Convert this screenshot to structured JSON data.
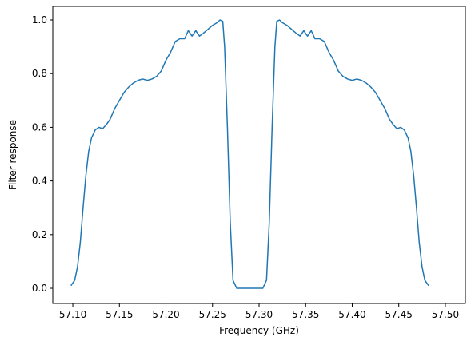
{
  "chart_data": {
    "type": "line",
    "xlabel": "Frequency (GHz)",
    "ylabel": "Filter response",
    "xlim": [
      57.0785,
      57.5215
    ],
    "ylim": [
      -0.0565,
      1.0506
    ],
    "xticks": [
      {
        "value": 57.1,
        "label": "57.10"
      },
      {
        "value": 57.15,
        "label": "57.15"
      },
      {
        "value": 57.2,
        "label": "57.20"
      },
      {
        "value": 57.25,
        "label": "57.25"
      },
      {
        "value": 57.3,
        "label": "57.30"
      },
      {
        "value": 57.35,
        "label": "57.35"
      },
      {
        "value": 57.4,
        "label": "57.40"
      },
      {
        "value": 57.45,
        "label": "57.45"
      },
      {
        "value": 57.5,
        "label": "57.50"
      }
    ],
    "yticks": [
      {
        "value": 0,
        "label": "0.0"
      },
      {
        "value": 0.2,
        "label": "0.2"
      },
      {
        "value": 0.4,
        "label": "0.4"
      },
      {
        "value": 0.6,
        "label": "0.6"
      },
      {
        "value": 0.8,
        "label": "0.8"
      },
      {
        "value": 1,
        "label": "1.0"
      }
    ],
    "x": [
      57.098,
      57.102,
      57.105,
      57.108,
      57.111,
      57.114,
      57.117,
      57.12,
      57.124,
      57.128,
      57.132,
      57.136,
      57.14,
      57.145,
      57.15,
      57.155,
      57.16,
      57.165,
      57.17,
      57.175,
      57.18,
      57.185,
      57.19,
      57.195,
      57.2,
      57.205,
      57.21,
      57.215,
      57.22,
      57.224,
      57.228,
      57.232,
      57.236,
      57.24,
      57.245,
      57.25,
      57.255,
      57.258,
      57.261,
      57.263,
      57.266,
      57.269,
      57.272,
      57.276,
      57.29,
      57.304,
      57.308,
      57.311,
      57.314,
      57.317,
      57.319,
      57.322,
      57.325,
      57.33,
      57.335,
      57.34,
      57.344,
      57.348,
      57.352,
      57.356,
      57.36,
      57.365,
      57.37,
      57.375,
      57.38,
      57.385,
      57.39,
      57.395,
      57.4,
      57.405,
      57.41,
      57.415,
      57.42,
      57.425,
      57.43,
      57.435,
      57.44,
      57.444,
      57.448,
      57.452,
      57.456,
      57.46,
      57.463,
      57.466,
      57.469,
      57.472,
      57.475,
      57.478,
      57.482
    ],
    "series": [
      {
        "name": "response",
        "color": "#1f77b4",
        "values": [
          0.01,
          0.03,
          0.08,
          0.17,
          0.3,
          0.42,
          0.51,
          0.56,
          0.59,
          0.6,
          0.595,
          0.61,
          0.63,
          0.67,
          0.7,
          0.73,
          0.75,
          0.765,
          0.775,
          0.78,
          0.775,
          0.78,
          0.79,
          0.81,
          0.85,
          0.88,
          0.92,
          0.93,
          0.93,
          0.96,
          0.94,
          0.96,
          0.94,
          0.95,
          0.965,
          0.98,
          0.99,
          1.0,
          0.995,
          0.9,
          0.6,
          0.25,
          0.03,
          0.0,
          0.0,
          0.0,
          0.03,
          0.25,
          0.6,
          0.9,
          0.995,
          1.0,
          0.99,
          0.98,
          0.965,
          0.95,
          0.94,
          0.96,
          0.94,
          0.96,
          0.93,
          0.93,
          0.92,
          0.88,
          0.85,
          0.81,
          0.79,
          0.78,
          0.775,
          0.78,
          0.775,
          0.765,
          0.75,
          0.73,
          0.7,
          0.67,
          0.63,
          0.61,
          0.595,
          0.6,
          0.59,
          0.56,
          0.51,
          0.42,
          0.3,
          0.17,
          0.08,
          0.03,
          0.01
        ]
      }
    ]
  }
}
